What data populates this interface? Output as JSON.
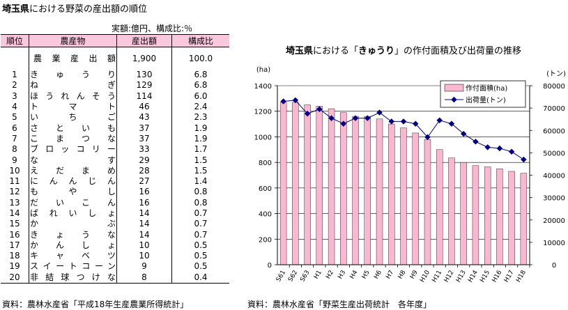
{
  "left": {
    "title_bold": "埼玉県",
    "title_rest": "における野菜の産出額の順位",
    "unit_note": "実額:億円、構成比:％",
    "headers": [
      "順位",
      "農産物",
      "産出額",
      "構成比"
    ],
    "total": {
      "label": "農業産出額",
      "amount": "1,900",
      "ratio": "100.0"
    },
    "rows": [
      {
        "rank": "1",
        "crop": "きゅうり",
        "amount": "130",
        "ratio": "6.8"
      },
      {
        "rank": "2",
        "crop": "ねぎ",
        "amount": "129",
        "ratio": "6.8"
      },
      {
        "rank": "3",
        "crop": "ほうれんそう",
        "amount": "114",
        "ratio": "6.0"
      },
      {
        "rank": "4",
        "crop": "トマト",
        "amount": "46",
        "ratio": "2.4"
      },
      {
        "rank": "5",
        "crop": "いちご",
        "amount": "43",
        "ratio": "2.3"
      },
      {
        "rank": "6",
        "crop": "さといも",
        "amount": "37",
        "ratio": "1.9"
      },
      {
        "rank": "7",
        "crop": "こまつな",
        "amount": "37",
        "ratio": "1.9"
      },
      {
        "rank": "8",
        "crop": "ブロッコリー",
        "amount": "33",
        "ratio": "1.7"
      },
      {
        "rank": "9",
        "crop": "なす",
        "amount": "29",
        "ratio": "1.5"
      },
      {
        "rank": "10",
        "crop": "えだまめ",
        "amount": "28",
        "ratio": "1.5"
      },
      {
        "rank": "11",
        "crop": "にんんじん",
        "amount": "27",
        "ratio": "1.4"
      },
      {
        "rank": "12",
        "crop": "もやし",
        "amount": "16",
        "ratio": "0.8"
      },
      {
        "rank": "13",
        "crop": "だいこん",
        "amount": "16",
        "ratio": "0.8"
      },
      {
        "rank": "14",
        "crop": "ばれいしょ",
        "amount": "14",
        "ratio": "0.7"
      },
      {
        "rank": "15",
        "crop": "かぶ",
        "amount": "14",
        "ratio": "0.7"
      },
      {
        "rank": "16",
        "crop": "きょうな",
        "amount": "14",
        "ratio": "0.7"
      },
      {
        "rank": "17",
        "crop": "かんしょ",
        "amount": "10",
        "ratio": "0.5"
      },
      {
        "rank": "18",
        "crop": "キャベツ",
        "amount": "10",
        "ratio": "0.5"
      },
      {
        "rank": "19",
        "crop": "スイートコーン",
        "amount": "9",
        "ratio": "0.5"
      },
      {
        "rank": "20",
        "crop": "非結球つけな",
        "amount": "8",
        "ratio": "0.4"
      }
    ],
    "source": "資料：農林水産省「平成18年生産農業所得統計」"
  },
  "right": {
    "title_bold1": "埼玉県",
    "title_mid": "における「",
    "title_bold2": "きゅうり",
    "title_end": "」の作付面積及び出荷量の推移",
    "source": "資料：農林水産省「野菜生産出荷統計　各年度」"
  },
  "colors": {
    "bar_fill": "#f9b8d0",
    "line": "#000080",
    "table_header": "#f9c8dc"
  },
  "chart_data": {
    "type": "bar",
    "title": "埼玉県における「きゅうり」の作付面積及び出荷量の推移",
    "categories": [
      "S61",
      "S62",
      "S63",
      "H1",
      "H2",
      "H3",
      "H4",
      "H5",
      "H6",
      "H7",
      "H8",
      "H9",
      "H10",
      "H11",
      "H12",
      "H13",
      "H14",
      "H15",
      "H16",
      "H17",
      "H18"
    ],
    "y_left_unit": "(ha)",
    "y_right_unit": "(トン)",
    "y_left_lim": [
      0,
      1400
    ],
    "y_left_ticks": [
      "0",
      "200",
      "400",
      "600",
      "800",
      "1000",
      "1200",
      "1400"
    ],
    "y_right_lim": [
      0,
      80000
    ],
    "y_right_ticks": [
      "0",
      "10000",
      "20000",
      "30000",
      "40000",
      "50000",
      "60000",
      "70000",
      "80000"
    ],
    "legend_position": "top-right",
    "series": [
      {
        "name": "作付面積(ha)",
        "type": "bar",
        "axis": "left",
        "values": [
          1270,
          1270,
          1250,
          1240,
          1220,
          1190,
          1160,
          1160,
          1140,
          1100,
          1070,
          1030,
          980,
          900,
          835,
          800,
          775,
          765,
          750,
          730,
          715
        ]
      },
      {
        "name": "出荷量(トン)",
        "type": "line",
        "axis": "right",
        "values": [
          73000,
          73500,
          67500,
          69500,
          65500,
          63000,
          65500,
          65500,
          68000,
          64000,
          64000,
          63000,
          57000,
          64500,
          63000,
          58500,
          55000,
          52500,
          52000,
          50500,
          47000
        ]
      }
    ]
  }
}
